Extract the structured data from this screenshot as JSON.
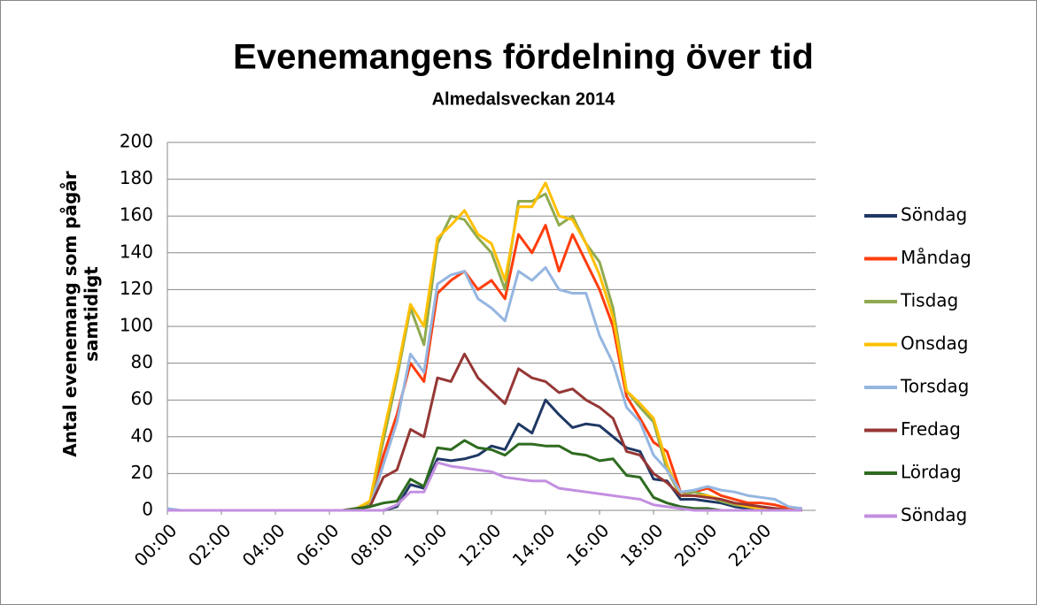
{
  "chart_data": {
    "type": "line",
    "title": "Evenemangens fördelning över tid",
    "subtitle": "Almedalsveckan 2014",
    "ylabel": "Antal evenemang som pågår samtidigt",
    "categories": [
      "00:00",
      null,
      null,
      null,
      "02:00",
      null,
      null,
      null,
      "04:00",
      null,
      null,
      null,
      "06:00",
      null,
      null,
      null,
      "08:00",
      null,
      null,
      null,
      "10:00",
      null,
      null,
      null,
      "12:00",
      null,
      null,
      null,
      "14:00",
      null,
      null,
      null,
      "16:00",
      null,
      null,
      null,
      "18:00",
      null,
      null,
      null,
      "20:00",
      null,
      null,
      null,
      "22:00",
      null,
      null,
      null
    ],
    "ylim": [
      0,
      200
    ],
    "yticks": [
      0,
      20,
      40,
      60,
      80,
      100,
      120,
      140,
      160,
      180,
      200
    ],
    "grid": true,
    "legend": "right",
    "series": [
      {
        "name": "Söndag",
        "color": "#1f3864",
        "values": [
          0,
          0,
          0,
          0,
          0,
          0,
          0,
          0,
          0,
          0,
          0,
          0,
          0,
          0,
          0,
          0,
          0,
          2,
          14,
          12,
          28,
          27,
          28,
          30,
          35,
          33,
          47,
          42,
          60,
          52,
          45,
          47,
          46,
          40,
          34,
          32,
          17,
          16,
          6,
          6,
          5,
          4,
          2,
          1,
          0,
          0,
          0,
          0
        ]
      },
      {
        "name": "Måndag",
        "color": "#ff3d0d",
        "values": [
          0,
          0,
          0,
          0,
          0,
          0,
          0,
          0,
          0,
          0,
          0,
          0,
          0,
          0,
          1,
          3,
          30,
          52,
          80,
          70,
          118,
          125,
          130,
          120,
          125,
          115,
          150,
          140,
          155,
          130,
          150,
          135,
          120,
          100,
          62,
          50,
          37,
          32,
          10,
          10,
          12,
          8,
          6,
          4,
          4,
          3,
          1,
          1
        ]
      },
      {
        "name": "Tisdag",
        "color": "#8faa4f",
        "values": [
          0,
          0,
          0,
          0,
          0,
          0,
          0,
          0,
          0,
          0,
          0,
          0,
          0,
          0,
          1,
          4,
          38,
          72,
          110,
          90,
          145,
          160,
          158,
          148,
          140,
          120,
          168,
          168,
          172,
          155,
          160,
          145,
          135,
          110,
          65,
          56,
          48,
          22,
          8,
          10,
          8,
          5,
          3,
          2,
          1,
          1,
          0,
          0
        ]
      },
      {
        "name": "Onsdag",
        "color": "#ffc000",
        "values": [
          0,
          0,
          0,
          0,
          0,
          0,
          0,
          0,
          0,
          0,
          0,
          0,
          0,
          0,
          1,
          5,
          42,
          75,
          112,
          100,
          148,
          155,
          163,
          150,
          145,
          125,
          165,
          165,
          178,
          160,
          158,
          145,
          128,
          105,
          65,
          58,
          50,
          25,
          8,
          8,
          8,
          6,
          4,
          2,
          1,
          1,
          0,
          0
        ]
      },
      {
        "name": "Torsdag",
        "color": "#95b6e0",
        "values": [
          1,
          0,
          0,
          0,
          0,
          0,
          0,
          0,
          0,
          0,
          0,
          0,
          0,
          0,
          0,
          2,
          25,
          48,
          85,
          75,
          123,
          128,
          130,
          115,
          110,
          103,
          130,
          125,
          132,
          120,
          118,
          118,
          95,
          80,
          56,
          48,
          30,
          22,
          10,
          11,
          13,
          11,
          10,
          8,
          7,
          6,
          2,
          1
        ]
      },
      {
        "name": "Fredag",
        "color": "#953735",
        "values": [
          0,
          0,
          0,
          0,
          0,
          0,
          0,
          0,
          0,
          0,
          0,
          0,
          0,
          0,
          1,
          2,
          18,
          22,
          44,
          40,
          72,
          70,
          85,
          72,
          65,
          58,
          77,
          72,
          70,
          64,
          66,
          60,
          56,
          50,
          32,
          30,
          20,
          15,
          8,
          8,
          7,
          6,
          4,
          3,
          2,
          1,
          0,
          0
        ]
      },
      {
        "name": "Lördag",
        "color": "#2e6b1f",
        "values": [
          0,
          0,
          0,
          0,
          0,
          0,
          0,
          0,
          0,
          0,
          0,
          0,
          0,
          0,
          1,
          2,
          4,
          5,
          17,
          13,
          34,
          33,
          38,
          34,
          33,
          30,
          36,
          36,
          35,
          35,
          31,
          30,
          27,
          28,
          19,
          18,
          7,
          4,
          2,
          1,
          1,
          0,
          0,
          0,
          0,
          0,
          0,
          0
        ]
      },
      {
        "name": "Söndag",
        "color": "#c38fe0",
        "values": [
          0,
          0,
          0,
          0,
          0,
          0,
          0,
          0,
          0,
          0,
          0,
          0,
          0,
          0,
          0,
          0,
          0,
          3,
          10,
          10,
          26,
          24,
          23,
          22,
          21,
          18,
          17,
          16,
          16,
          12,
          11,
          10,
          9,
          8,
          7,
          6,
          3,
          2,
          1,
          0,
          0,
          0,
          0,
          0,
          0,
          0,
          0,
          0
        ]
      }
    ]
  }
}
